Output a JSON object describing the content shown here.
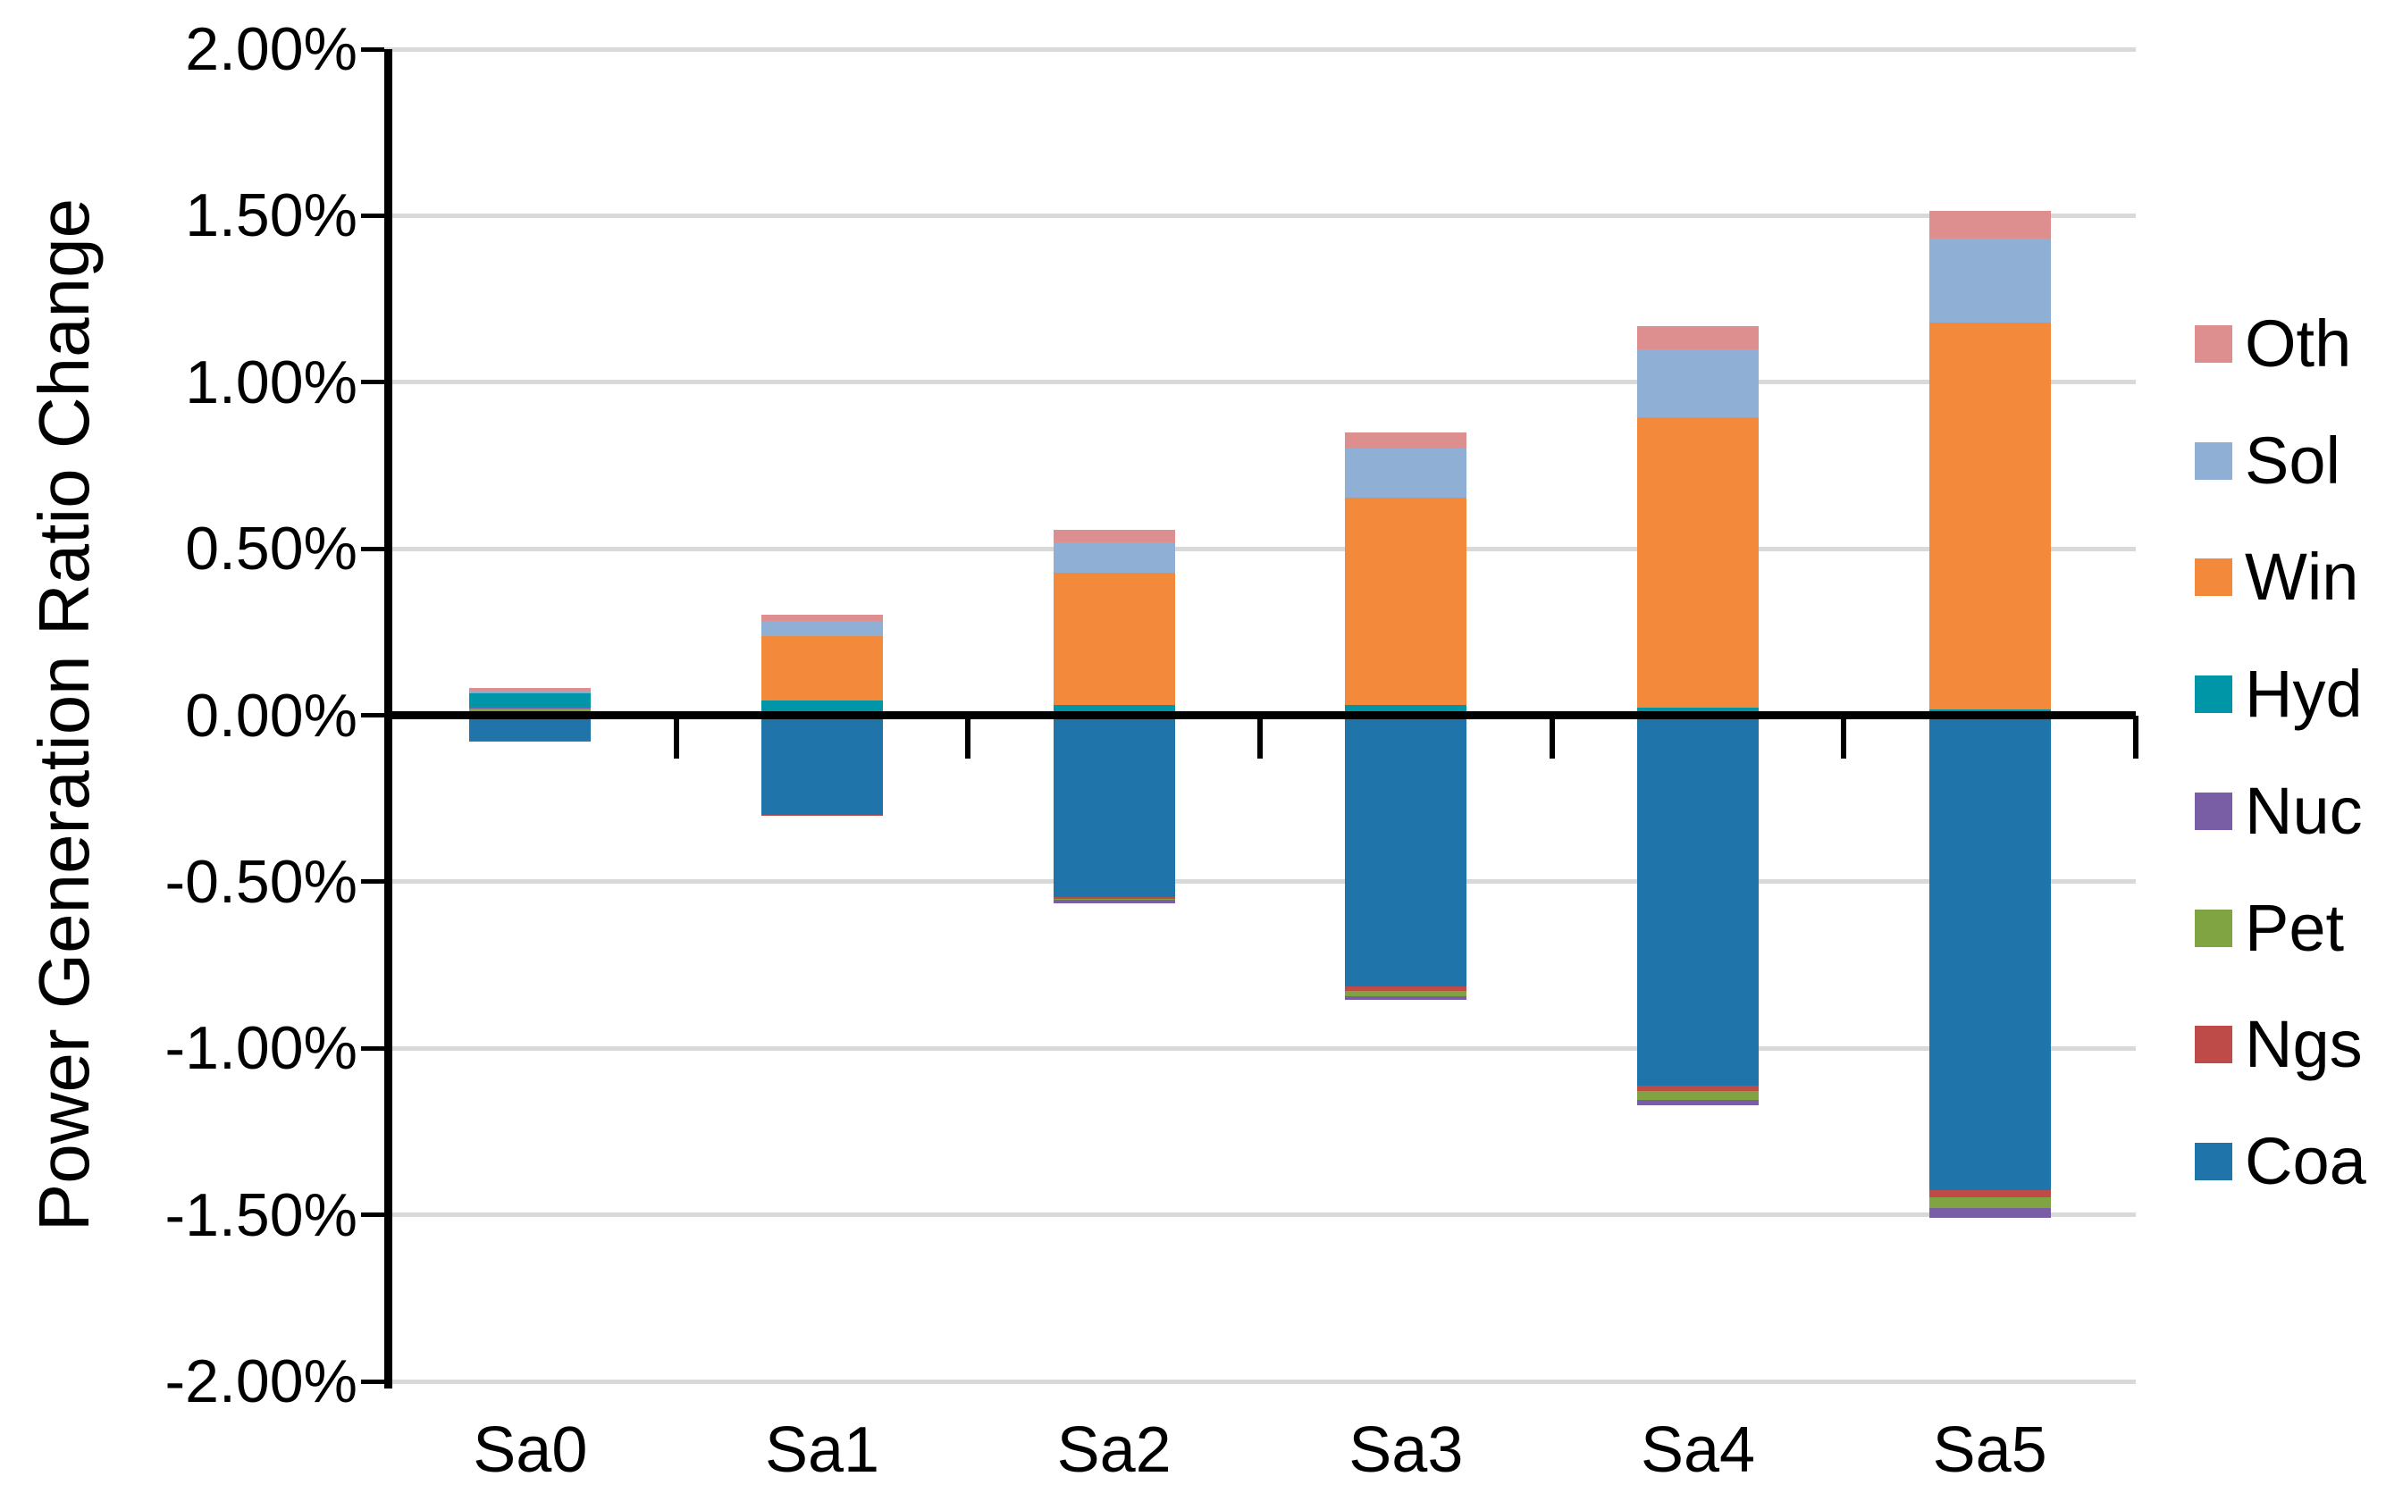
{
  "chart_data": {
    "type": "bar",
    "subtype": "stacked-diverging",
    "title": "",
    "xlabel": "",
    "ylabel": "Power Generation Ratio Change",
    "ylim": [
      -2.0,
      2.0
    ],
    "grid": "horizontal",
    "legend_position": "right",
    "categories": [
      "Sa0",
      "Sa1",
      "Sa2",
      "Sa3",
      "Sa4",
      "Sa5"
    ],
    "yticks": [
      {
        "value": 2.0,
        "label": "2.00%"
      },
      {
        "value": 1.5,
        "label": "1.50%"
      },
      {
        "value": 1.0,
        "label": "1.00%"
      },
      {
        "value": 0.5,
        "label": "0.50%"
      },
      {
        "value": 0.0,
        "label": "0.00%"
      },
      {
        "value": -0.5,
        "label": "-0.50%"
      },
      {
        "value": -1.0,
        "label": "-1.00%"
      },
      {
        "value": -1.5,
        "label": "-1.50%"
      },
      {
        "value": -2.0,
        "label": "-2.00%"
      }
    ],
    "series": [
      {
        "name": "Coa",
        "color": "#1F74A9",
        "values": [
          -0.077,
          -0.298,
          -0.546,
          -0.814,
          -1.111,
          -1.427
        ]
      },
      {
        "name": "Ngs",
        "color": "#BE4B48",
        "values": [
          -0.003,
          -0.003,
          -0.005,
          -0.013,
          -0.016,
          -0.02
        ]
      },
      {
        "name": "Pet",
        "color": "#7FA441",
        "values": [
          0.019,
          0.002,
          -0.004,
          -0.016,
          -0.027,
          -0.033
        ]
      },
      {
        "name": "Nuc",
        "color": "#7A5EA5",
        "values": [
          0.006,
          0.001,
          -0.011,
          -0.011,
          -0.018,
          -0.029
        ]
      },
      {
        "name": "Hyd",
        "color": "#0096A7",
        "values": [
          0.042,
          0.042,
          0.03,
          0.031,
          0.024,
          0.017
        ]
      },
      {
        "name": "Win",
        "color": "#F2893B",
        "values": [
          0.003,
          0.192,
          0.398,
          0.621,
          0.871,
          1.161
        ]
      },
      {
        "name": "Sol",
        "color": "#8FAFD5",
        "values": [
          0.002,
          0.046,
          0.09,
          0.148,
          0.204,
          0.252
        ]
      },
      {
        "name": "Oth",
        "color": "#DD8E8F",
        "values": [
          0.01,
          0.018,
          0.039,
          0.05,
          0.069,
          0.084
        ]
      }
    ],
    "legend_order": [
      "Oth",
      "Sol",
      "Win",
      "Hyd",
      "Nuc",
      "Pet",
      "Ngs",
      "Coa"
    ],
    "colors": {
      "gridline": "#D9D9D9",
      "axis": "#000000",
      "background": "#FFFFFF"
    }
  }
}
